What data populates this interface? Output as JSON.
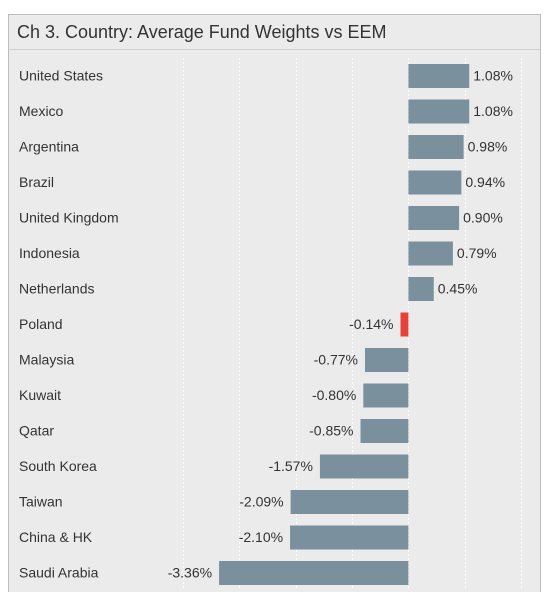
{
  "chart_data": {
    "type": "hbar",
    "title": "Ch 3. Country:  Average Fund Weights vs EEM",
    "categories": [
      "United States",
      "Mexico",
      "Argentina",
      "Brazil",
      "United Kingdom",
      "Indonesia",
      "Netherlands",
      "Poland",
      "Malaysia",
      "Kuwait",
      "Qatar",
      "South Korea",
      "Taiwan",
      "China & HK",
      "Saudi Arabia"
    ],
    "values": [
      1.08,
      1.08,
      0.98,
      0.94,
      0.9,
      0.79,
      0.45,
      -0.14,
      -0.77,
      -0.8,
      -0.85,
      -1.57,
      -2.09,
      -2.1,
      -3.36
    ],
    "value_labels": [
      "1.08%",
      "1.08%",
      "0.98%",
      "0.94%",
      "0.90%",
      "0.79%",
      "0.45%",
      "-0.14%",
      "-0.77%",
      "-0.80%",
      "-0.85%",
      "-1.57%",
      "-2.09%",
      "-2.10%",
      "-3.36%"
    ],
    "colors": [
      "#7a909c",
      "#7a909c",
      "#7a909c",
      "#7a909c",
      "#7a909c",
      "#7a909c",
      "#7a909c",
      "#e8413a",
      "#7a909c",
      "#7a909c",
      "#7a909c",
      "#7a909c",
      "#7a909c",
      "#7a909c",
      "#7a909c"
    ],
    "xlim": [
      -4,
      2.3
    ],
    "xticks": [
      -4,
      -3,
      -2,
      -1,
      0,
      1,
      2
    ],
    "grid": true
  }
}
